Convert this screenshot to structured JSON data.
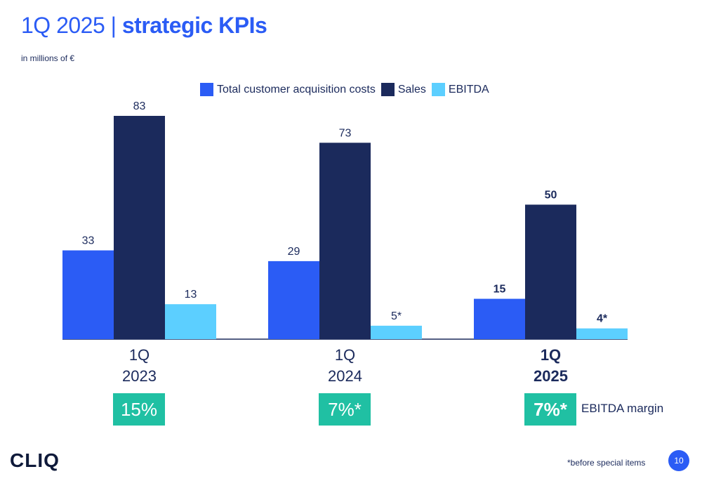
{
  "header": {
    "title_regular": "1Q 2025 | ",
    "title_bold": "strategic KPIs",
    "subtitle": "in millions of €"
  },
  "colors": {
    "accent": "#2b5cf5",
    "navy": "#1b2a5c",
    "acquisition": "#2b5cf5",
    "sales": "#1b2a5c",
    "ebitda": "#5ccfff",
    "margin_box": "#20c0a3"
  },
  "chart_data": {
    "type": "bar",
    "title": "",
    "xlabel": "",
    "ylabel": "",
    "grid": false,
    "legend_position": "top-center",
    "categories": [
      {
        "line1": "1Q",
        "line2": "2023",
        "bold": false
      },
      {
        "line1": "1Q",
        "line2": "2024",
        "bold": false
      },
      {
        "line1": "1Q",
        "line2": "2025",
        "bold": true
      }
    ],
    "series": [
      {
        "name": "Total customer acquisition costs",
        "values": [
          33,
          29,
          15
        ],
        "labels": [
          "33",
          "29",
          "15"
        ],
        "color": "#2b5cf5"
      },
      {
        "name": "Sales",
        "values": [
          83,
          73,
          50
        ],
        "labels": [
          "83",
          "73",
          "50"
        ],
        "color": "#1b2a5c"
      },
      {
        "name": "EBITDA",
        "values": [
          13,
          5,
          4
        ],
        "labels": [
          "13",
          "5*",
          "4*"
        ],
        "color": "#5ccfff"
      }
    ],
    "ylim": [
      0,
      83
    ]
  },
  "ebitda_margin": {
    "values": [
      "15%",
      "7%*",
      "7%*"
    ],
    "label": "EBITDA margin"
  },
  "footer": {
    "logo": "CLIQ",
    "footnote": "*before special items",
    "page_number": "10"
  }
}
